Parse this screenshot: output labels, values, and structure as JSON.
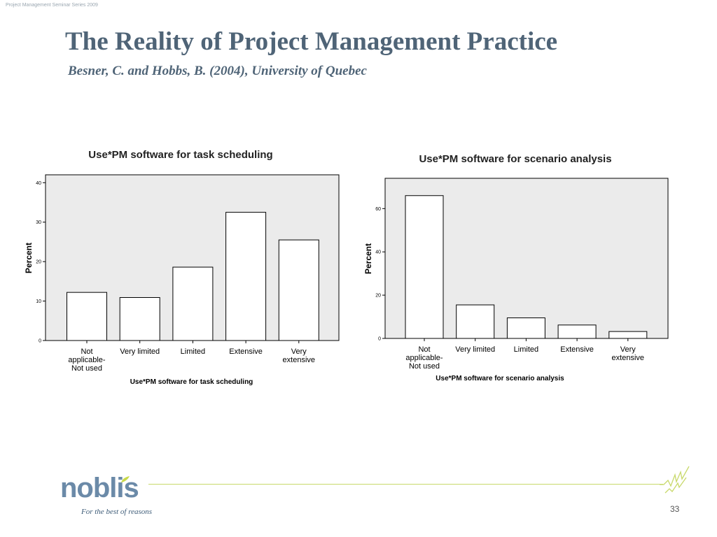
{
  "slide": {
    "header_note": "Project Management Seminar Series 2009",
    "title": "The Reality of Project Management Practice",
    "subtitle": "Besner, C. and Hobbs, B. (2004), University of Quebec",
    "page_number": "33"
  },
  "footer": {
    "logo_text": "noblis",
    "tagline": "For the best of reasons"
  },
  "colors": {
    "title": "#4f6477",
    "plot_bg": "#ebebeb",
    "bar_fill": "#ffffff",
    "bar_stroke": "#000000",
    "accent_line": "#c8d96a"
  },
  "chart_data": [
    {
      "type": "bar",
      "title": "Use*PM software for task scheduling",
      "xlabel": "Use*PM software for task scheduling",
      "ylabel": "Percent",
      "categories": [
        [
          "Not",
          "applicable-",
          "Not used"
        ],
        [
          "Very limited"
        ],
        [
          "Limited"
        ],
        [
          "Extensive"
        ],
        [
          "Very",
          "extensive"
        ]
      ],
      "values": [
        12.2,
        10.9,
        18.6,
        32.5,
        25.5
      ],
      "ylim": [
        0,
        42
      ],
      "yticks": [
        0,
        10,
        20,
        30,
        40
      ],
      "grid": false
    },
    {
      "type": "bar",
      "title": "Use*PM software for scenario analysis",
      "xlabel": "Use*PM software for scenario analysis",
      "ylabel": "Percent",
      "categories": [
        [
          "Not",
          "applicable-",
          "Not used"
        ],
        [
          "Very limited"
        ],
        [
          "Limited"
        ],
        [
          "Extensive"
        ],
        [
          "Very",
          "extensive"
        ]
      ],
      "values": [
        66.0,
        15.5,
        9.5,
        6.2,
        3.2
      ],
      "ylim": [
        0,
        74
      ],
      "yticks": [
        0,
        20,
        40,
        60
      ],
      "grid": false
    }
  ]
}
